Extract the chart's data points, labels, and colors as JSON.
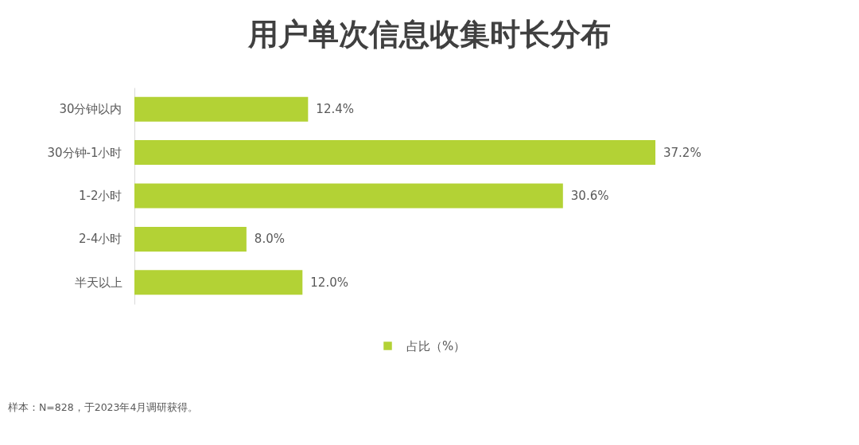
{
  "chart_data": {
    "type": "bar",
    "orientation": "horizontal",
    "title": "用户单次信息收集时长分布",
    "categories": [
      "30分钟以内",
      "30分钟-1小时",
      "1-2小时",
      "2-4小时",
      "半天以上"
    ],
    "series": [
      {
        "name": "占比（%）",
        "color": "#b3d235",
        "values": [
          12.4,
          37.2,
          30.6,
          8.0,
          12.0
        ],
        "value_labels": [
          "12.4%",
          "37.2%",
          "30.6%",
          "8.0%",
          "12.0%"
        ]
      }
    ],
    "legend": "bottom",
    "tick_labels": "y",
    "annotations": [
      "样本：N=828，于2023年4月调研获得。"
    ]
  }
}
